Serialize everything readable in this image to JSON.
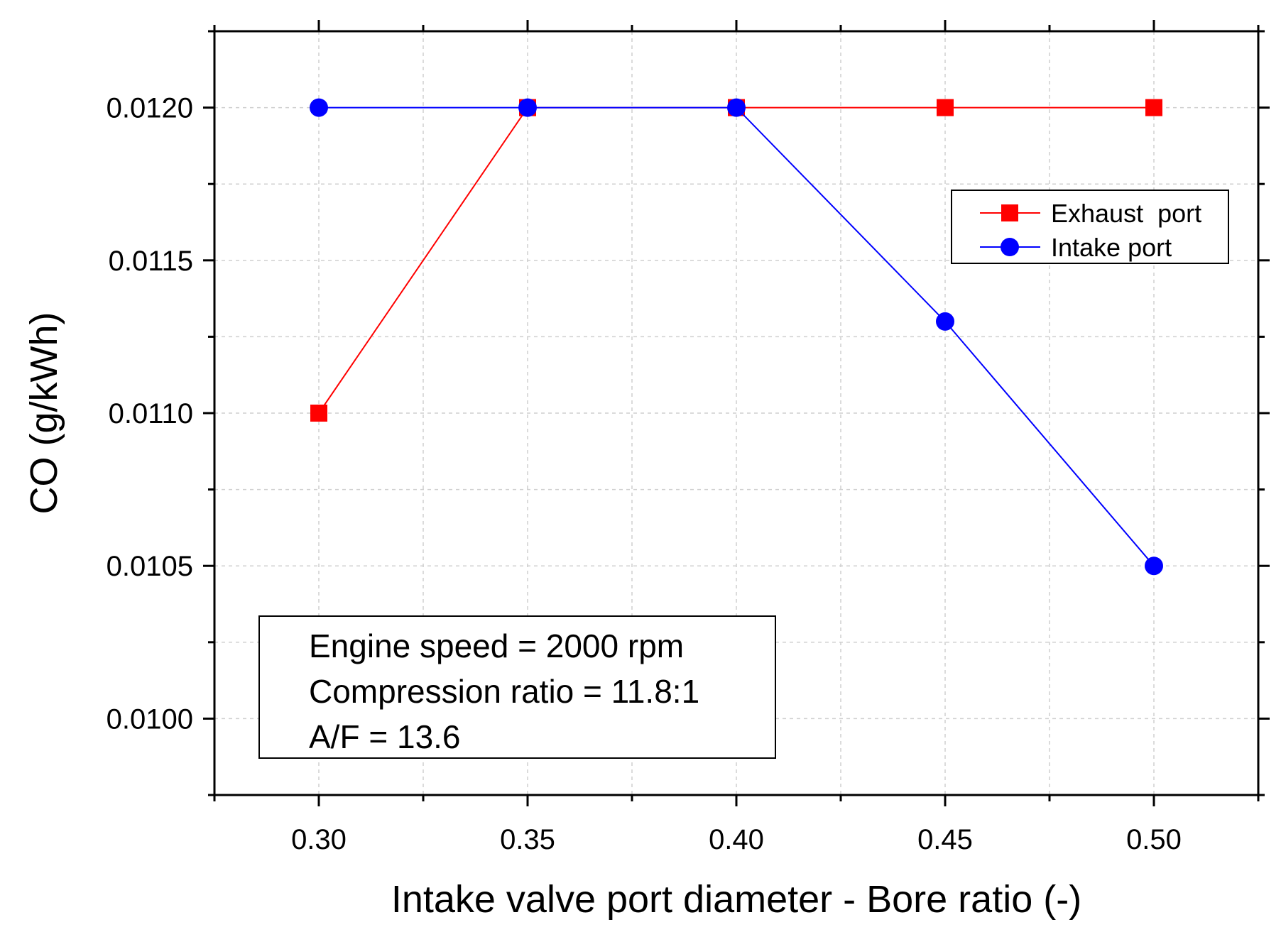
{
  "chart_data": {
    "type": "line",
    "title": "",
    "xlabel": "Intake valve port diameter - Bore ratio (-)",
    "ylabel": "CO (g/kWh)",
    "xlim": [
      0.275,
      0.525
    ],
    "ylim": [
      0.00975,
      0.01225
    ],
    "x_ticks": [
      "0.30",
      "0.35",
      "0.40",
      "0.45",
      "0.50"
    ],
    "x_tick_values": [
      0.3,
      0.35,
      0.4,
      0.45,
      0.5
    ],
    "y_ticks": [
      "0.0100",
      "0.0105",
      "0.0110",
      "0.0115",
      "0.0120"
    ],
    "y_tick_values": [
      0.01,
      0.0105,
      0.011,
      0.0115,
      0.012
    ],
    "grid": true,
    "legend_position": "top-right",
    "x": [
      0.3,
      0.35,
      0.4,
      0.45,
      0.5
    ],
    "series": [
      {
        "name": "Exhaust  port",
        "values": [
          0.011,
          0.012,
          0.012,
          0.012,
          0.012
        ],
        "color": "#ff0000",
        "marker": "square"
      },
      {
        "name": "Intake port",
        "values": [
          0.012,
          0.012,
          0.012,
          0.0113,
          0.0105
        ],
        "color": "#0000ff",
        "marker": "circle"
      }
    ],
    "annotation": [
      "Engine speed = 2000 rpm",
      "Compression ratio = 11.8:1",
      "A/F = 13.6"
    ]
  }
}
